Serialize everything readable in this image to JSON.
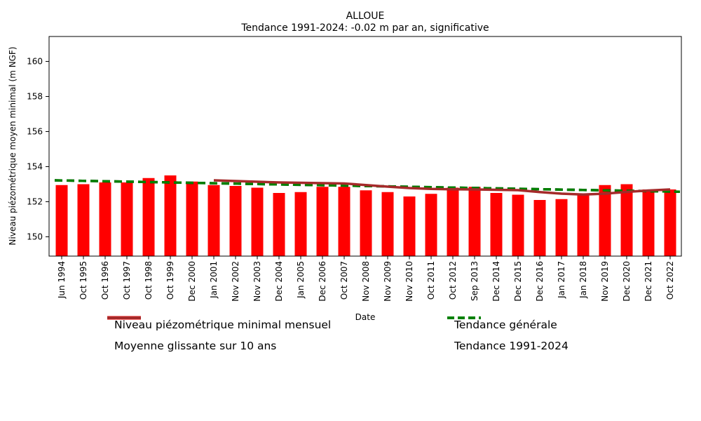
{
  "chart_data": {
    "type": "bar",
    "title": "ALLOUE",
    "subtitle": "Tendance 1991-2024: -0.02 m par an, significative",
    "xlabel": "Date",
    "ylabel": "Niveau piézométrique moyen minimal (m NGF)",
    "categories": [
      "Jun 1994",
      "Oct 1995",
      "Oct 1996",
      "Oct 1997",
      "Oct 1998",
      "Oct 1999",
      "Dec 2000",
      "Jan 2001",
      "Nov 2002",
      "Nov 2003",
      "Dec 2004",
      "Jan 2005",
      "Dec 2006",
      "Oct 2007",
      "Nov 2008",
      "Nov 2009",
      "Nov 2010",
      "Oct 2011",
      "Oct 2012",
      "Sep 2013",
      "Dec 2014",
      "Dec 2015",
      "Dec 2016",
      "Jan 2017",
      "Jan 2018",
      "Nov 2019",
      "Dec 2020",
      "Dec 2021",
      "Oct 2022"
    ],
    "series": [
      {
        "name": "Niveau piézométrique minimal mensuel",
        "kind": "bar",
        "color": "#ff0000",
        "linestyle": "solid",
        "values": [
          152.95,
          153.0,
          153.1,
          153.1,
          153.35,
          153.5,
          153.15,
          152.95,
          152.9,
          152.8,
          152.5,
          152.55,
          152.85,
          152.85,
          152.65,
          152.55,
          152.3,
          152.45,
          152.8,
          152.85,
          152.5,
          152.4,
          152.1,
          152.15,
          152.4,
          152.95,
          153.0,
          152.7,
          152.7
        ]
      },
      {
        "name": "Moyenne glissante sur 10 ans",
        "kind": "line",
        "color": "#a52a2a",
        "linestyle": "solid",
        "start_index": 7,
        "values": [
          153.22,
          153.18,
          153.14,
          153.1,
          153.08,
          153.06,
          153.04,
          152.95,
          152.86,
          152.78,
          152.73,
          152.71,
          152.7,
          152.68,
          152.66,
          152.55,
          152.46,
          152.41,
          152.46,
          152.56,
          152.64,
          152.7
        ]
      },
      {
        "name": "Tendance générale",
        "kind": "trendline",
        "color": "#000000",
        "linestyle": "dashed",
        "endpoints": [
          153.22,
          152.57
        ]
      },
      {
        "name": "Tendance 1991-2024",
        "kind": "trendline",
        "color": "#008000",
        "linestyle": "dashed",
        "endpoints": [
          153.22,
          152.57
        ]
      }
    ],
    "yticks": [
      150,
      152,
      154,
      156,
      158,
      160
    ],
    "ylim": [
      148.9,
      161.4
    ],
    "grid": false,
    "legend_position": "bottom",
    "legend_columns": 2
  }
}
